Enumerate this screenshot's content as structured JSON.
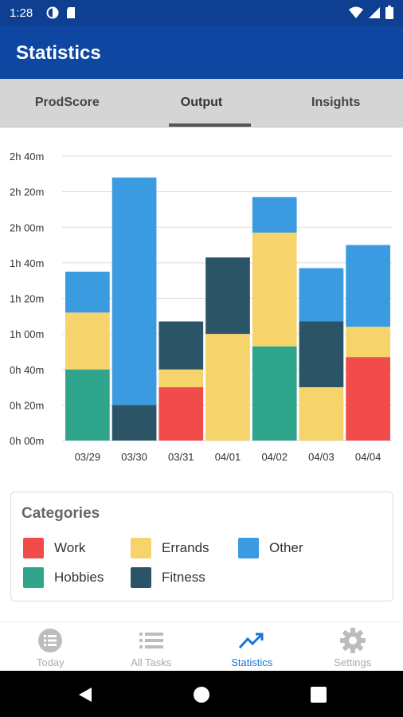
{
  "status_bar": {
    "time": "1:28"
  },
  "app_bar": {
    "title": "Statistics"
  },
  "tabs": [
    {
      "label": "ProdScore",
      "active": false
    },
    {
      "label": "Output",
      "active": true
    },
    {
      "label": "Insights",
      "active": false
    }
  ],
  "colors": {
    "Work": "#f24b4b",
    "Errands": "#f7d46b",
    "Other": "#3a9be0",
    "Hobbies": "#2fa58c",
    "Fitness": "#2b5566"
  },
  "chart_data": {
    "type": "bar",
    "stacked": true,
    "categories": [
      "03/29",
      "03/30",
      "03/31",
      "04/01",
      "04/02",
      "04/03",
      "04/04"
    ],
    "y_ticks": [
      "0h 00m",
      "0h 20m",
      "0h 40m",
      "1h 00m",
      "1h 20m",
      "1h 40m",
      "2h 00m",
      "2h 20m",
      "2h 40m"
    ],
    "ylim_minutes": [
      0,
      160
    ],
    "grid": true,
    "series": [
      {
        "name": "Work",
        "values": [
          0,
          0,
          30,
          0,
          0,
          0,
          47
        ]
      },
      {
        "name": "Hobbies",
        "values": [
          40,
          0,
          0,
          0,
          53,
          0,
          0
        ]
      },
      {
        "name": "Errands",
        "values": [
          32,
          0,
          10,
          60,
          64,
          30,
          17
        ]
      },
      {
        "name": "Fitness",
        "values": [
          0,
          20,
          27,
          43,
          0,
          37,
          0
        ]
      },
      {
        "name": "Other",
        "values": [
          23,
          128,
          0,
          0,
          20,
          30,
          46
        ]
      }
    ]
  },
  "legend": {
    "title": "Categories",
    "items": [
      {
        "label": "Work",
        "color": "#f24b4b"
      },
      {
        "label": "Errands",
        "color": "#f7d46b"
      },
      {
        "label": "Other",
        "color": "#3a9be0"
      },
      {
        "label": "Hobbies",
        "color": "#2fa58c"
      },
      {
        "label": "Fitness",
        "color": "#2b5566"
      }
    ]
  },
  "bottom_nav": [
    {
      "label": "Today",
      "icon": "list-circle-icon",
      "active": false
    },
    {
      "label": "All Tasks",
      "icon": "list-icon",
      "active": false
    },
    {
      "label": "Statistics",
      "icon": "trending-up-icon",
      "active": true
    },
    {
      "label": "Settings",
      "icon": "gear-icon",
      "active": false
    }
  ],
  "system_nav": {
    "icons": [
      "back-icon",
      "home-icon",
      "recents-icon"
    ]
  }
}
